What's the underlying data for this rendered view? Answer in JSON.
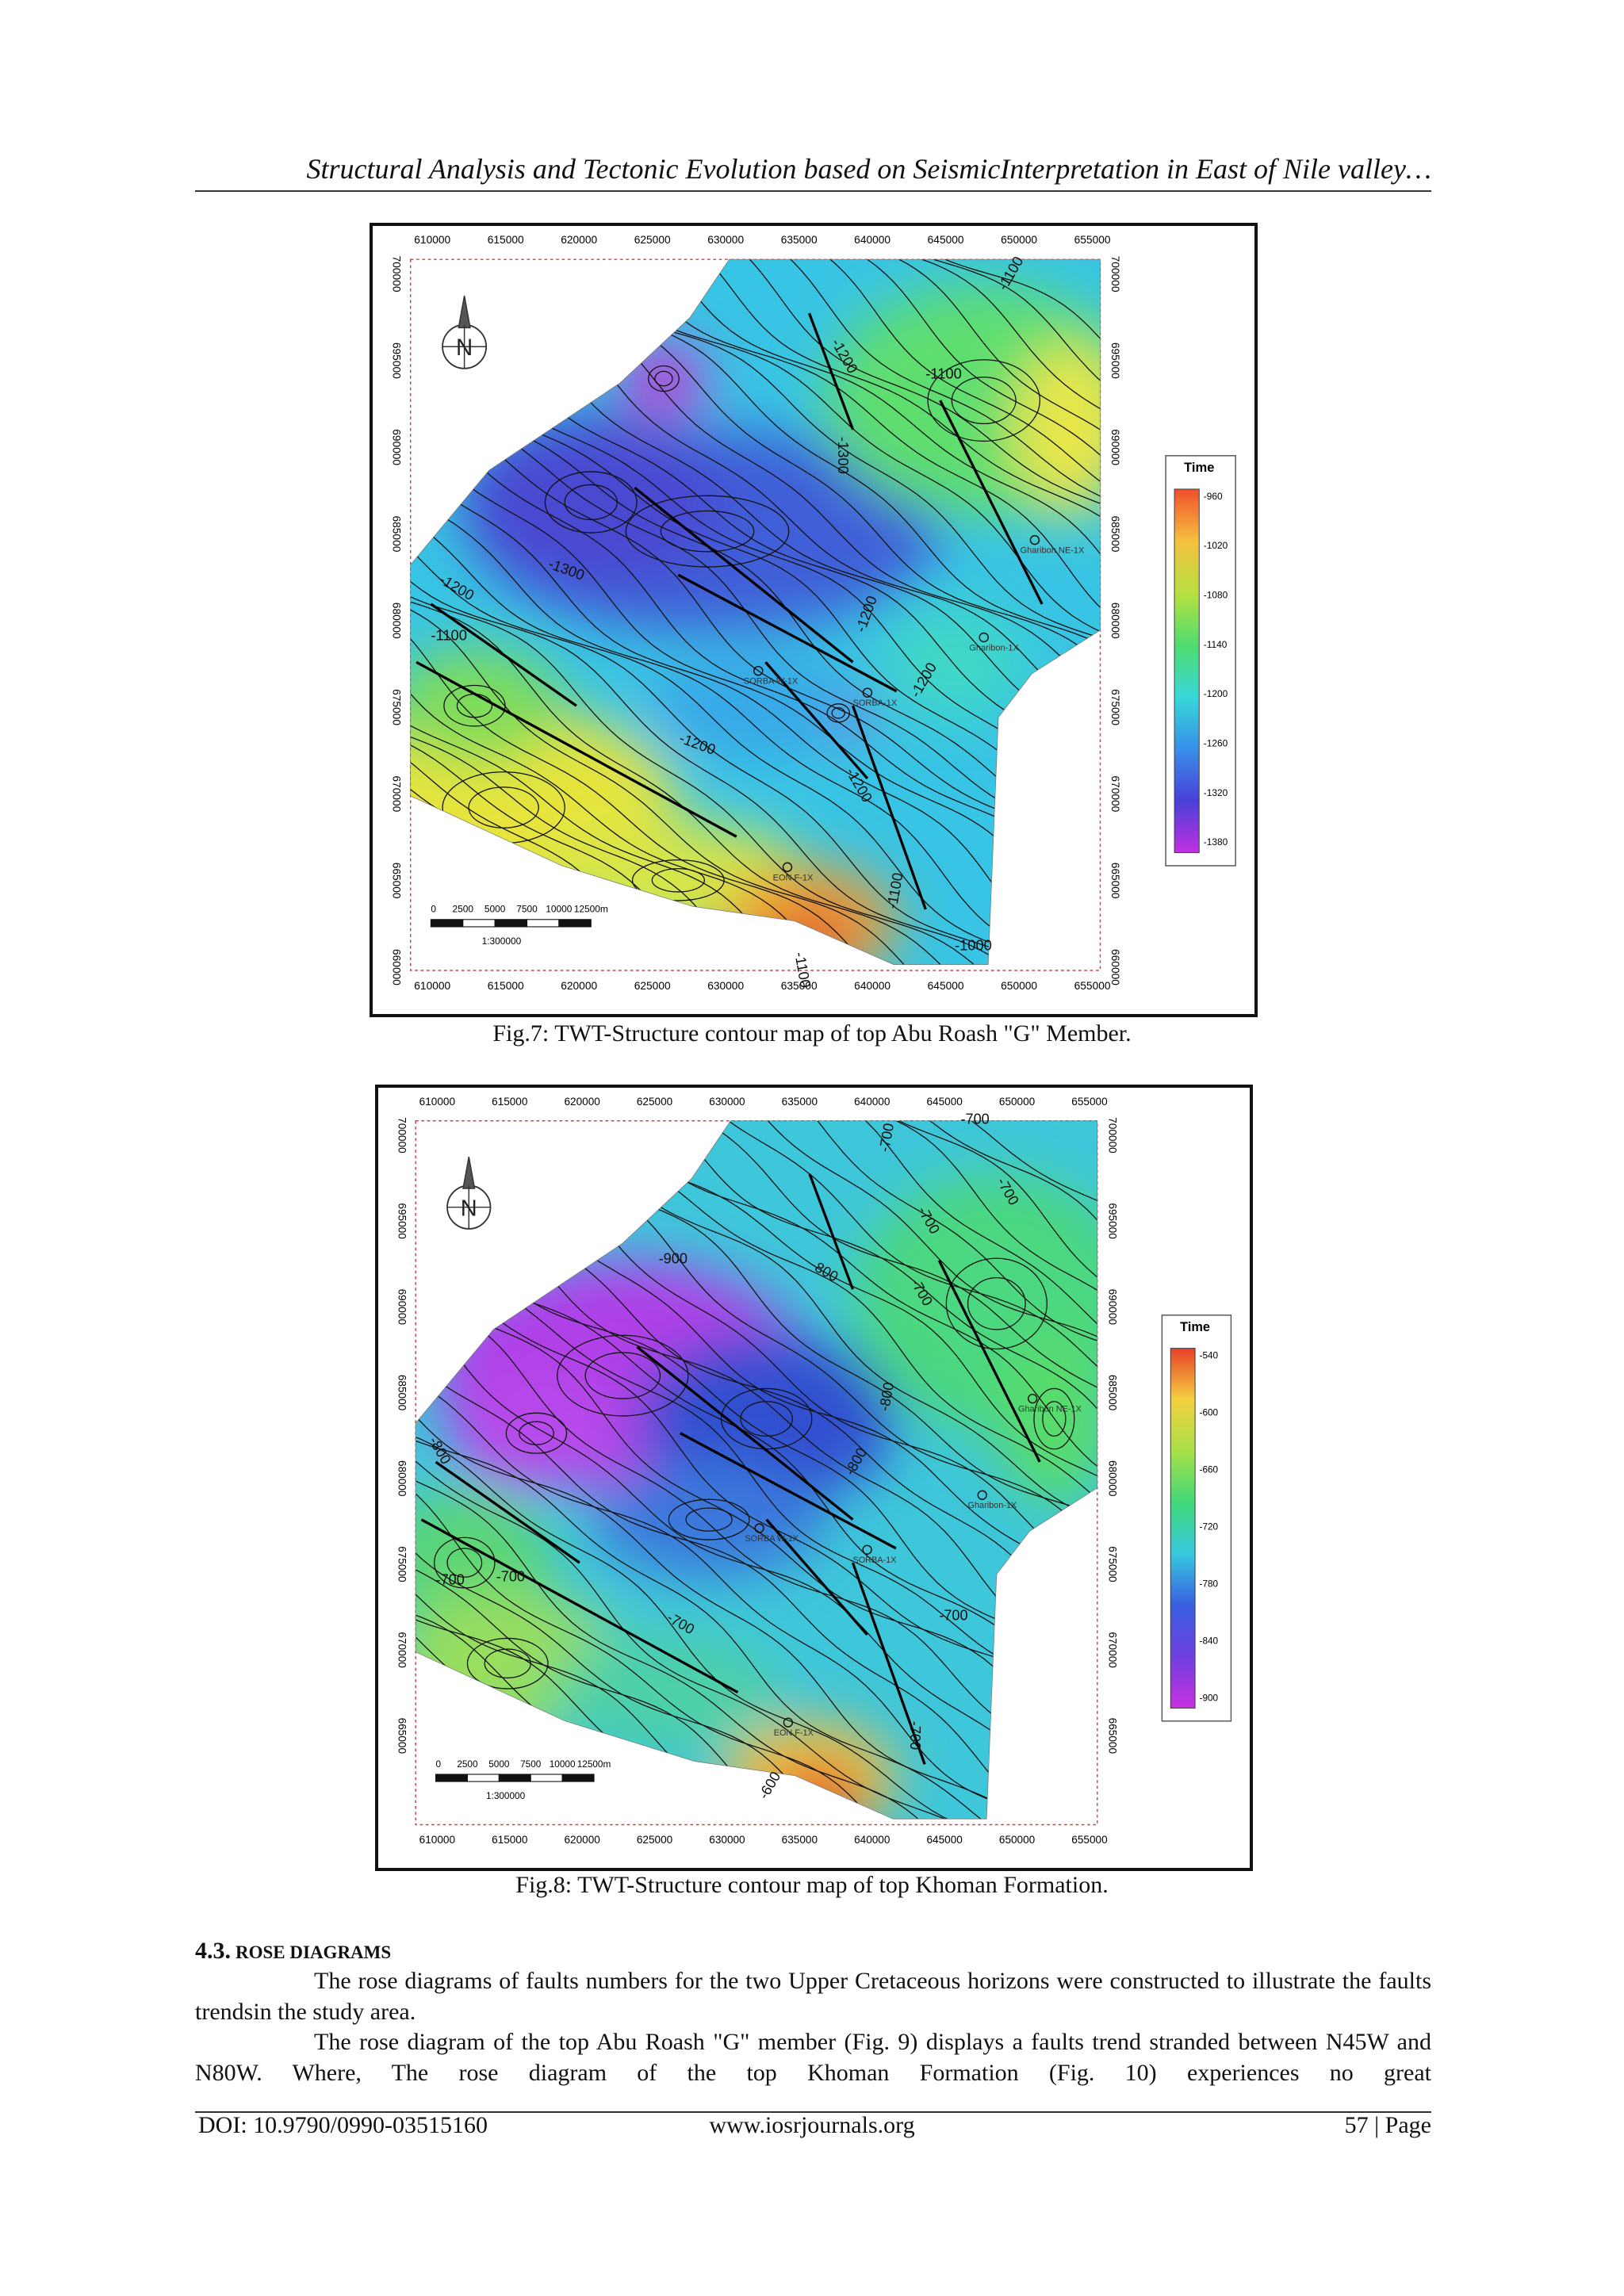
{
  "header": {
    "running_title": "Structural Analysis and Tectonic Evolution based on SeismicInterpretation in East of Nile valley…"
  },
  "figures": [
    {
      "caption": "Fig.7:  TWT-Structure contour map of top Abu Roash \"G\" Member.",
      "x_ticks": [
        "610000",
        "615000",
        "620000",
        "625000",
        "630000",
        "635000",
        "640000",
        "645000",
        "650000",
        "655000"
      ],
      "y_ticks": [
        "700000",
        "695000",
        "690000",
        "685000",
        "680000",
        "675000",
        "670000",
        "665000",
        "660000"
      ],
      "legend": {
        "title": "Time",
        "labels": [
          "-960",
          "-1020",
          "-1080",
          "-1140",
          "-1200",
          "-1260",
          "-1320",
          "-1380"
        ]
      },
      "north": "N",
      "scale_bar": {
        "labels": [
          "0",
          "2500",
          "5000",
          "7500",
          "10000",
          "12500m"
        ],
        "ratio": "1:300000"
      },
      "contour_labels": [
        "-1100",
        "-1100",
        "-1200",
        "-1300",
        "-1300",
        "-1200",
        "-1100",
        "-1200",
        "-1200",
        "-1200",
        "-1200",
        "-1100",
        "-1000",
        "-1100"
      ],
      "wells": [
        "Gharibon NE-1X",
        "Gharibon-1X",
        "SORBA W-1X",
        "SORBA-1X",
        "EON F-1X"
      ]
    },
    {
      "caption": "Fig.8:  TWT-Structure contour map of top Khoman Formation.",
      "x_ticks": [
        "610000",
        "615000",
        "620000",
        "625000",
        "630000",
        "635000",
        "640000",
        "645000",
        "650000",
        "655000"
      ],
      "y_ticks": [
        "700000",
        "695000",
        "690000",
        "685000",
        "680000",
        "675000",
        "670000",
        "665000"
      ],
      "legend": {
        "title": "Time",
        "labels": [
          "-540",
          "-600",
          "-660",
          "-720",
          "-780",
          "-840",
          "-900"
        ]
      },
      "north": "N",
      "scale_bar": {
        "labels": [
          "0",
          "2500",
          "5000",
          "7500",
          "10000",
          "12500m"
        ],
        "ratio": "1:300000"
      },
      "contour_labels": [
        "-700",
        "-700",
        "-700",
        "-700",
        "-700",
        "-900",
        "-800",
        "-800",
        "-800",
        "-800",
        "-700",
        "-700",
        "-700",
        "-700",
        "-700",
        "-600"
      ],
      "wells": [
        "Gharibon NE-1X",
        "Gharibon-1X",
        "SORBA W-1X",
        "SORBA-1X",
        "EON F-1X"
      ]
    }
  ],
  "section": {
    "number": "4.3.",
    "title": "ROSE DIAGRAMS",
    "paragraphs": [
      "The rose diagrams of faults numbers for the two Upper Cretaceous horizons were constructed to illustrate the faults trendsin the study area.",
      "The rose diagram of the top Abu Roash \"G\" member (Fig. 9) displays a faults trend stranded between N45W and N80W. Where, The rose diagram of the top Khoman Formation (Fig. 10) experiences no great"
    ]
  },
  "footer": {
    "doi": "DOI: 10.9790/0990-03515160",
    "site": "www.iosrjournals.org",
    "page": "57 | Page"
  }
}
